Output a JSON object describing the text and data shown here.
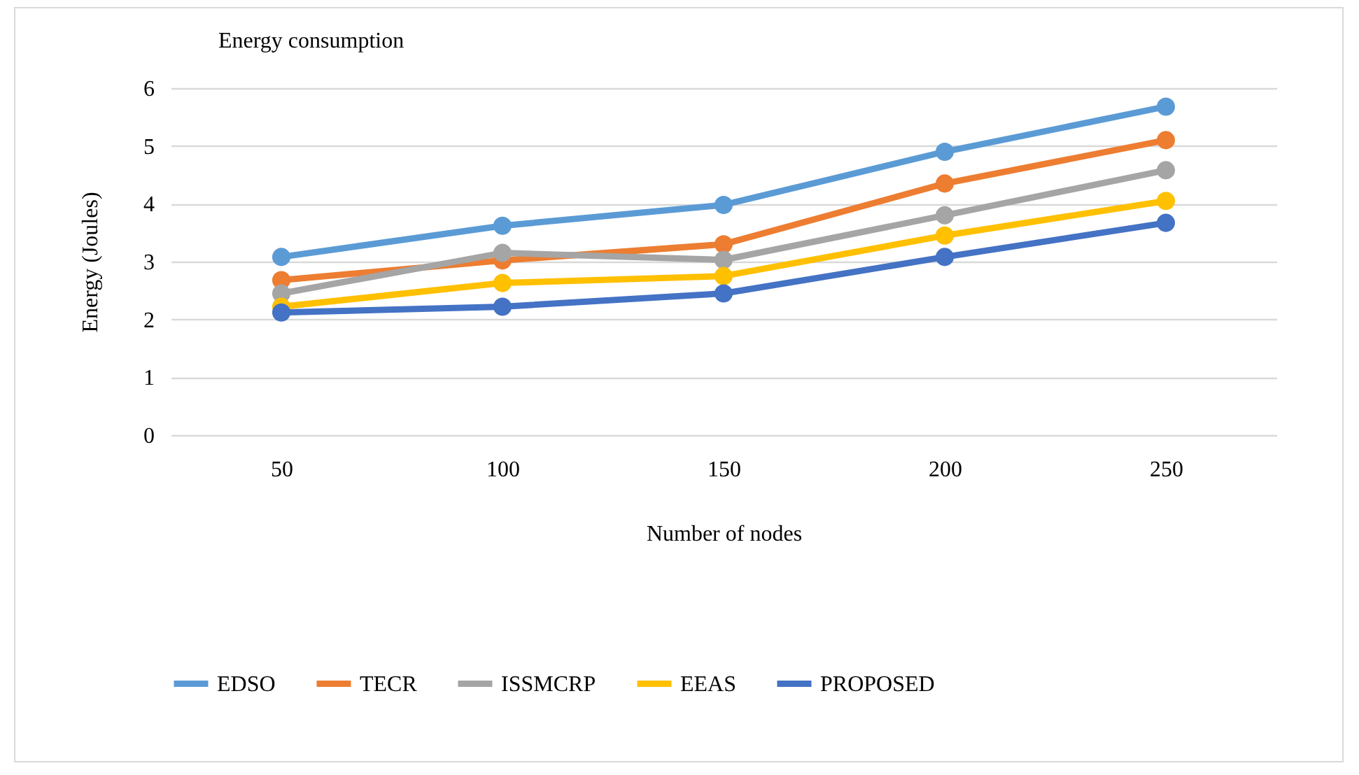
{
  "chart_data": {
    "type": "line",
    "title": "Energy consumption",
    "xlabel": "Number of nodes",
    "ylabel": "Energy (Joules)",
    "categories": [
      "50",
      "100",
      "150",
      "200",
      "250"
    ],
    "series": [
      {
        "name": "EDSO",
        "color": "#5b9bd5",
        "values": [
          3.08,
          3.62,
          3.98,
          4.9,
          5.68
        ]
      },
      {
        "name": "TECR",
        "color": "#ed7d31",
        "values": [
          2.68,
          3.02,
          3.3,
          4.35,
          5.1
        ]
      },
      {
        "name": "ISSMCRP",
        "color": "#a5a5a5",
        "values": [
          2.45,
          3.15,
          3.03,
          3.8,
          4.58
        ]
      },
      {
        "name": "EEAS",
        "color": "#ffc000",
        "values": [
          2.22,
          2.63,
          2.75,
          3.45,
          4.05
        ]
      },
      {
        "name": "PROPOSED",
        "color": "#4472c4",
        "values": [
          2.12,
          2.22,
          2.45,
          3.08,
          3.67
        ]
      }
    ],
    "ylim": [
      0,
      6
    ],
    "yticks": [
      0,
      1,
      2,
      3,
      4,
      5,
      6
    ],
    "grid": "y",
    "legend": "bottom",
    "marker": "circle",
    "line_style": "solid"
  }
}
